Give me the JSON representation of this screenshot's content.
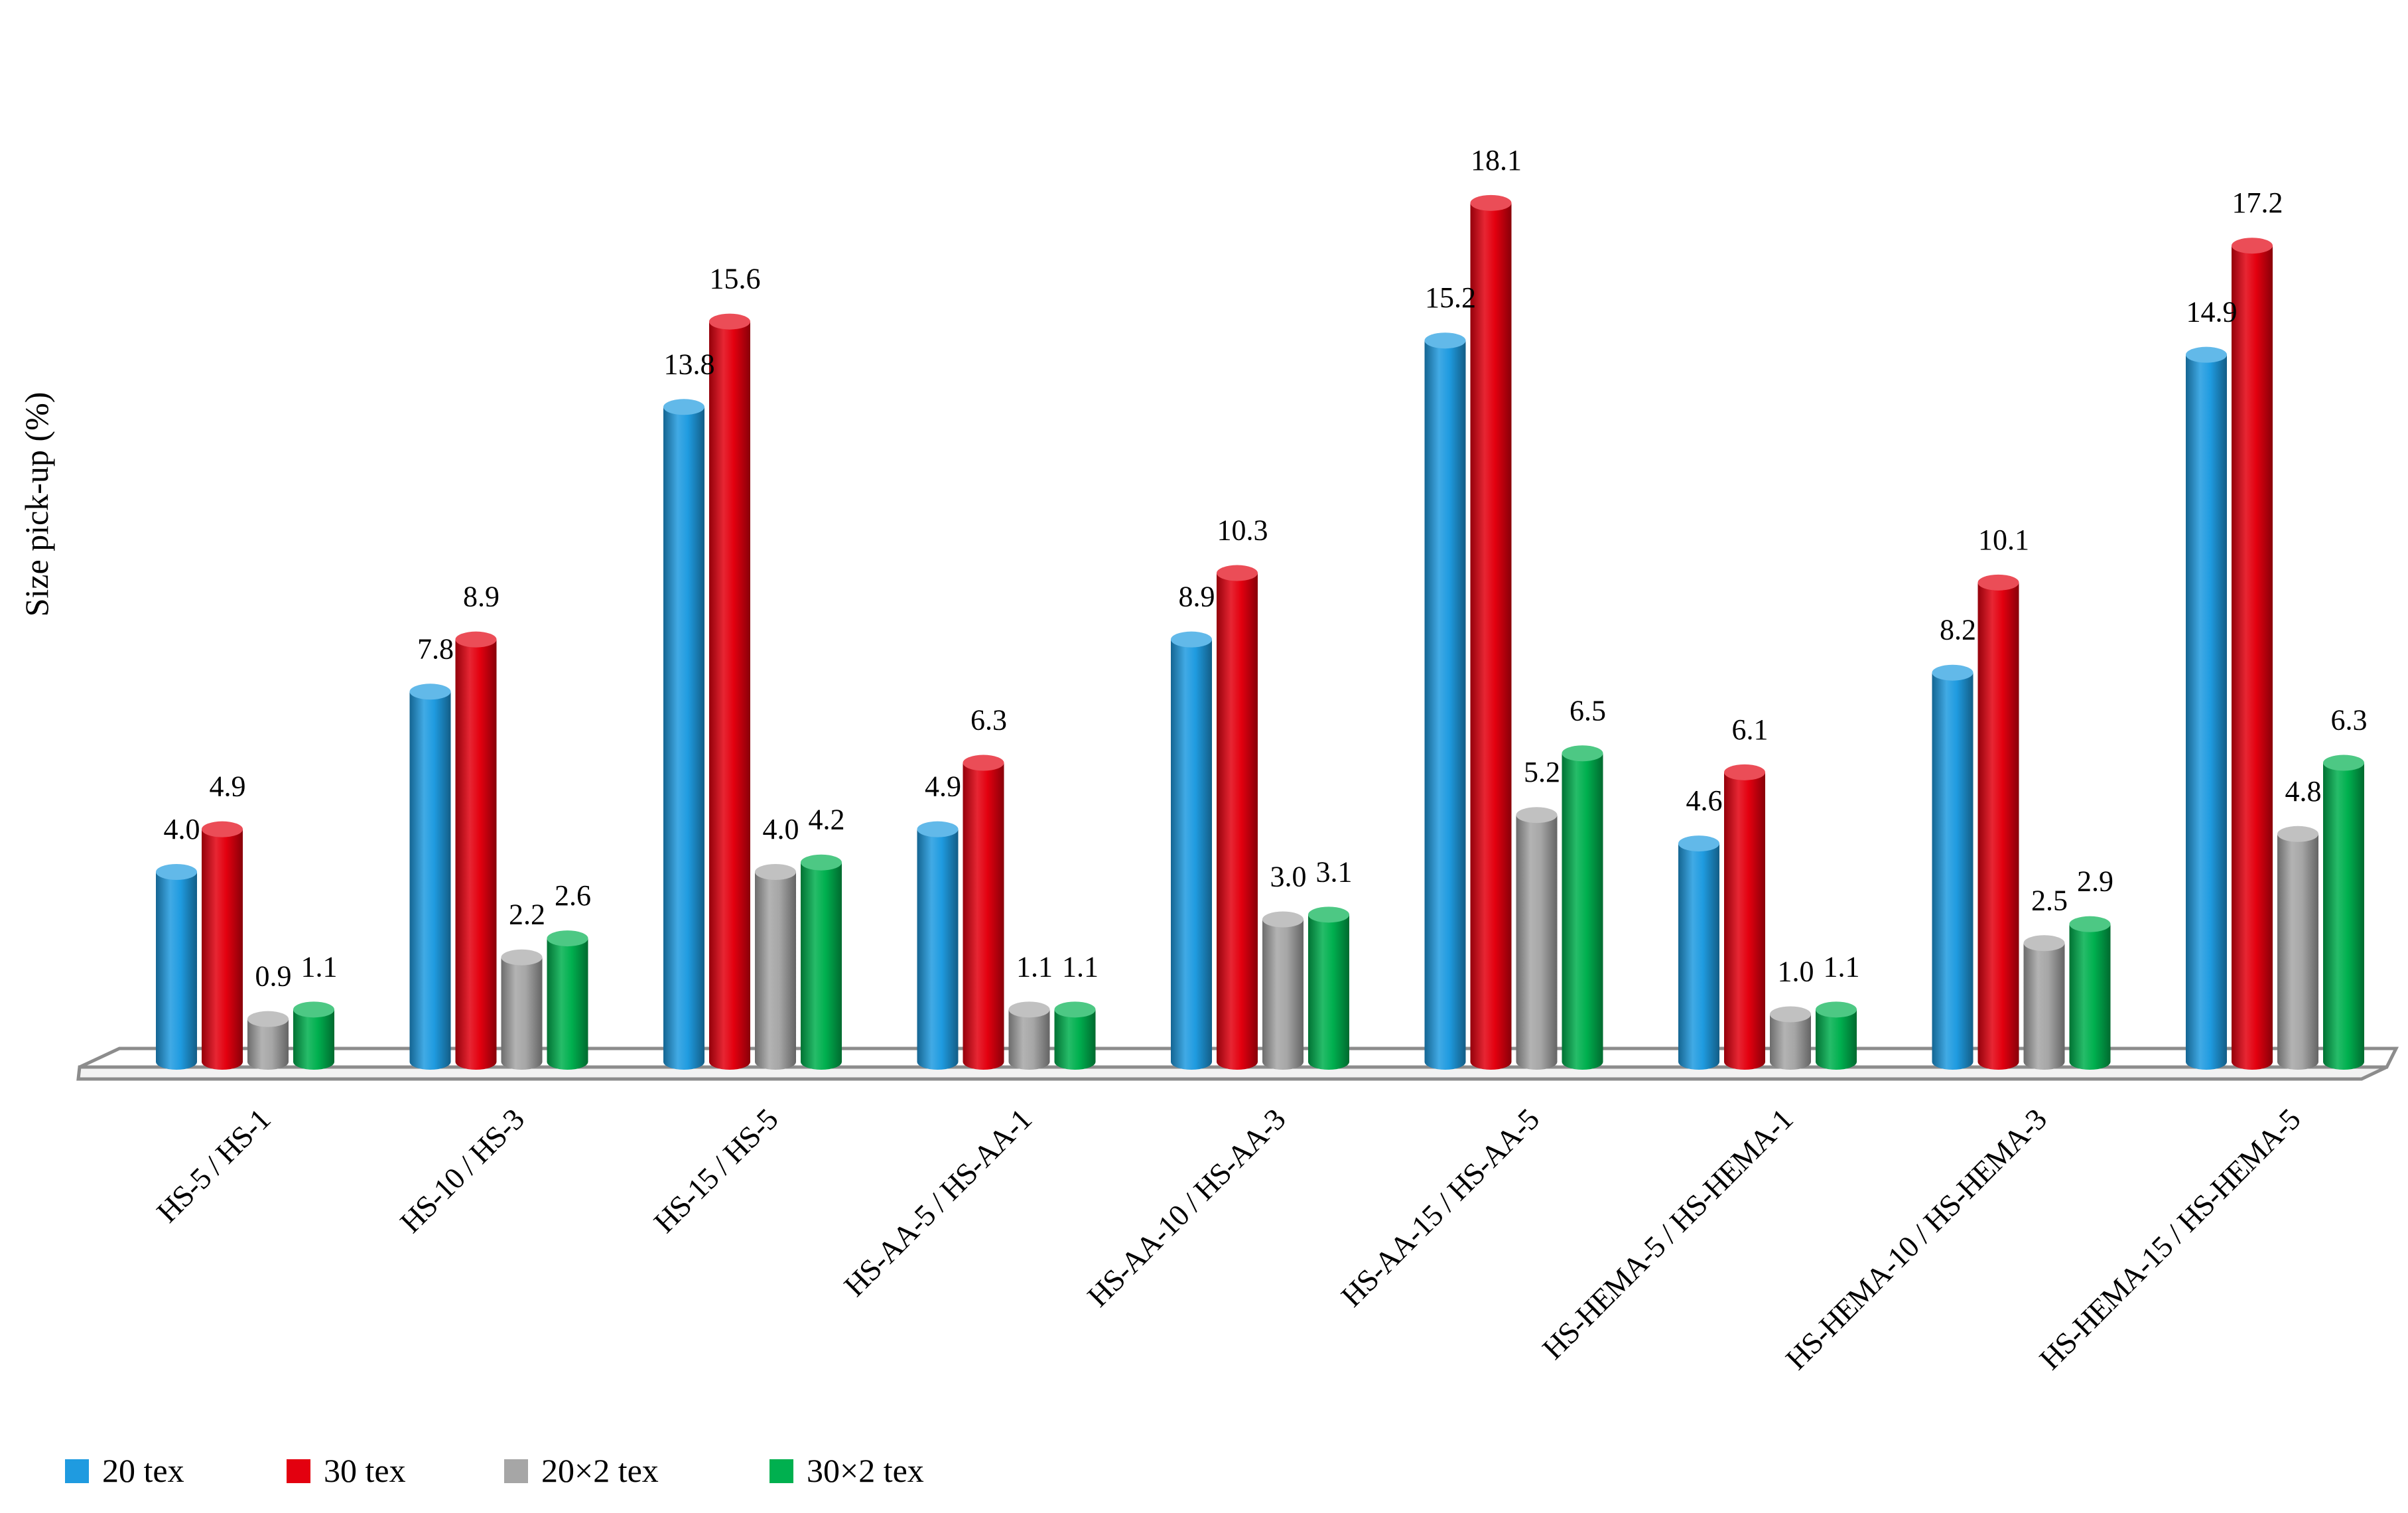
{
  "chart_data": {
    "type": "bar",
    "title": "",
    "xlabel": "",
    "ylabel": "Size pick-up (%)",
    "ylim": [
      0,
      20
    ],
    "grid": false,
    "legend_position": "bottom-left",
    "categories": [
      "HS-5 / HS-1",
      "HS-10 / HS-3",
      "HS-15 / HS-5",
      "HS-AA-5 / HS-AA-1",
      "HS-AA-10 / HS-AA-3",
      "HS-AA-15 / HS-AA-5",
      "HS-HEMA-5 / HS-HEMA-1",
      "HS-HEMA-10 / HS-HEMA-3",
      "HS-HEMA-15 / HS-HEMA-5"
    ],
    "series": [
      {
        "name": "20 tex",
        "color": "#1f9be0",
        "values": [
          4.0,
          7.8,
          13.8,
          4.9,
          8.9,
          15.2,
          4.6,
          8.2,
          14.9
        ]
      },
      {
        "name": "30 tex",
        "color": "#e3000f",
        "values": [
          4.9,
          8.9,
          15.6,
          6.3,
          10.3,
          18.1,
          6.1,
          10.1,
          17.2
        ]
      },
      {
        "name": "20×2 tex",
        "color": "#a6a6a6",
        "values": [
          0.9,
          2.2,
          4.0,
          1.1,
          3.0,
          5.2,
          1.0,
          2.5,
          4.8
        ]
      },
      {
        "name": "30×2 tex",
        "color": "#00b04f",
        "values": [
          1.1,
          2.6,
          4.2,
          1.1,
          3.1,
          6.5,
          1.1,
          2.9,
          6.3
        ]
      }
    ]
  }
}
